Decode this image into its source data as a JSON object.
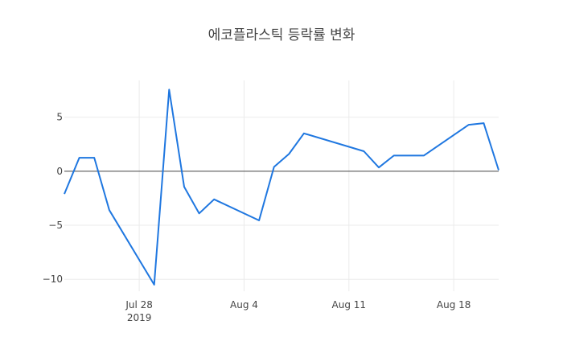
{
  "chart_data": {
    "type": "line",
    "title": "에코플라스틱 등락률 변화",
    "xlabel": "",
    "ylabel": "",
    "xlim": [
      "2019-07-23",
      "2019-08-21"
    ],
    "ylim": [
      -11.1,
      8.4
    ],
    "grid": true,
    "x_ticks": [
      {
        "date": "2019-07-28",
        "label": "Jul 28",
        "sublabel": "2019"
      },
      {
        "date": "2019-08-04",
        "label": "Aug 4",
        "sublabel": ""
      },
      {
        "date": "2019-08-11",
        "label": "Aug 11",
        "sublabel": ""
      },
      {
        "date": "2019-08-18",
        "label": "Aug 18",
        "sublabel": ""
      }
    ],
    "y_ticks": [
      {
        "value": 5,
        "label": "5"
      },
      {
        "value": 0,
        "label": "0"
      },
      {
        "value": -5,
        "label": "−5"
      },
      {
        "value": -10,
        "label": "−10"
      }
    ],
    "series": [
      {
        "color": "#1f77e0",
        "x": [
          "2019-07-23",
          "2019-07-24",
          "2019-07-25",
          "2019-07-26",
          "2019-07-29",
          "2019-07-30",
          "2019-07-31",
          "2019-08-01",
          "2019-08-02",
          "2019-08-05",
          "2019-08-06",
          "2019-08-07",
          "2019-08-08",
          "2019-08-12",
          "2019-08-13",
          "2019-08-14",
          "2019-08-16",
          "2019-08-19",
          "2019-08-20",
          "2019-08-21"
        ],
        "y": [
          -2.1,
          1.25,
          1.25,
          -3.6,
          -10.5,
          7.55,
          -1.45,
          -3.9,
          -2.6,
          -4.55,
          0.4,
          1.6,
          3.5,
          1.85,
          0.35,
          1.45,
          1.45,
          4.3,
          4.45,
          0.1
        ]
      }
    ]
  }
}
